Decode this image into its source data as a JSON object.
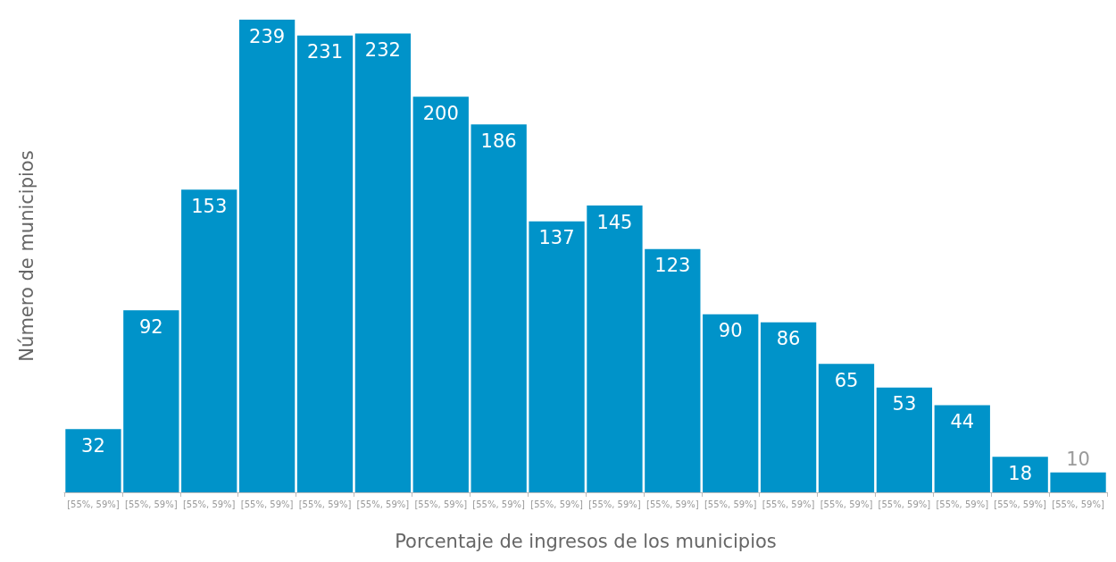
{
  "chart_data": {
    "type": "bar",
    "xlabel": "Porcentaje de ingresos de los municipios",
    "ylabel": "Número de municipios",
    "categories": [
      "[55%, 59%]",
      "[55%, 59%]",
      "[55%, 59%]",
      "[55%, 59%]",
      "[55%, 59%]",
      "[55%, 59%]",
      "[55%, 59%]",
      "[55%, 59%]",
      "[55%, 59%]",
      "[55%, 59%]",
      "[55%, 59%]",
      "[55%, 59%]",
      "[55%, 59%]",
      "[55%, 59%]",
      "[55%, 59%]",
      "[55%, 59%]",
      "[55%, 59%]",
      "[55%, 59%]"
    ],
    "values": [
      32,
      92,
      153,
      239,
      231,
      232,
      200,
      186,
      137,
      145,
      123,
      90,
      86,
      65,
      53,
      44,
      18,
      10
    ],
    "color": "#0093c9",
    "data_labels": true
  }
}
